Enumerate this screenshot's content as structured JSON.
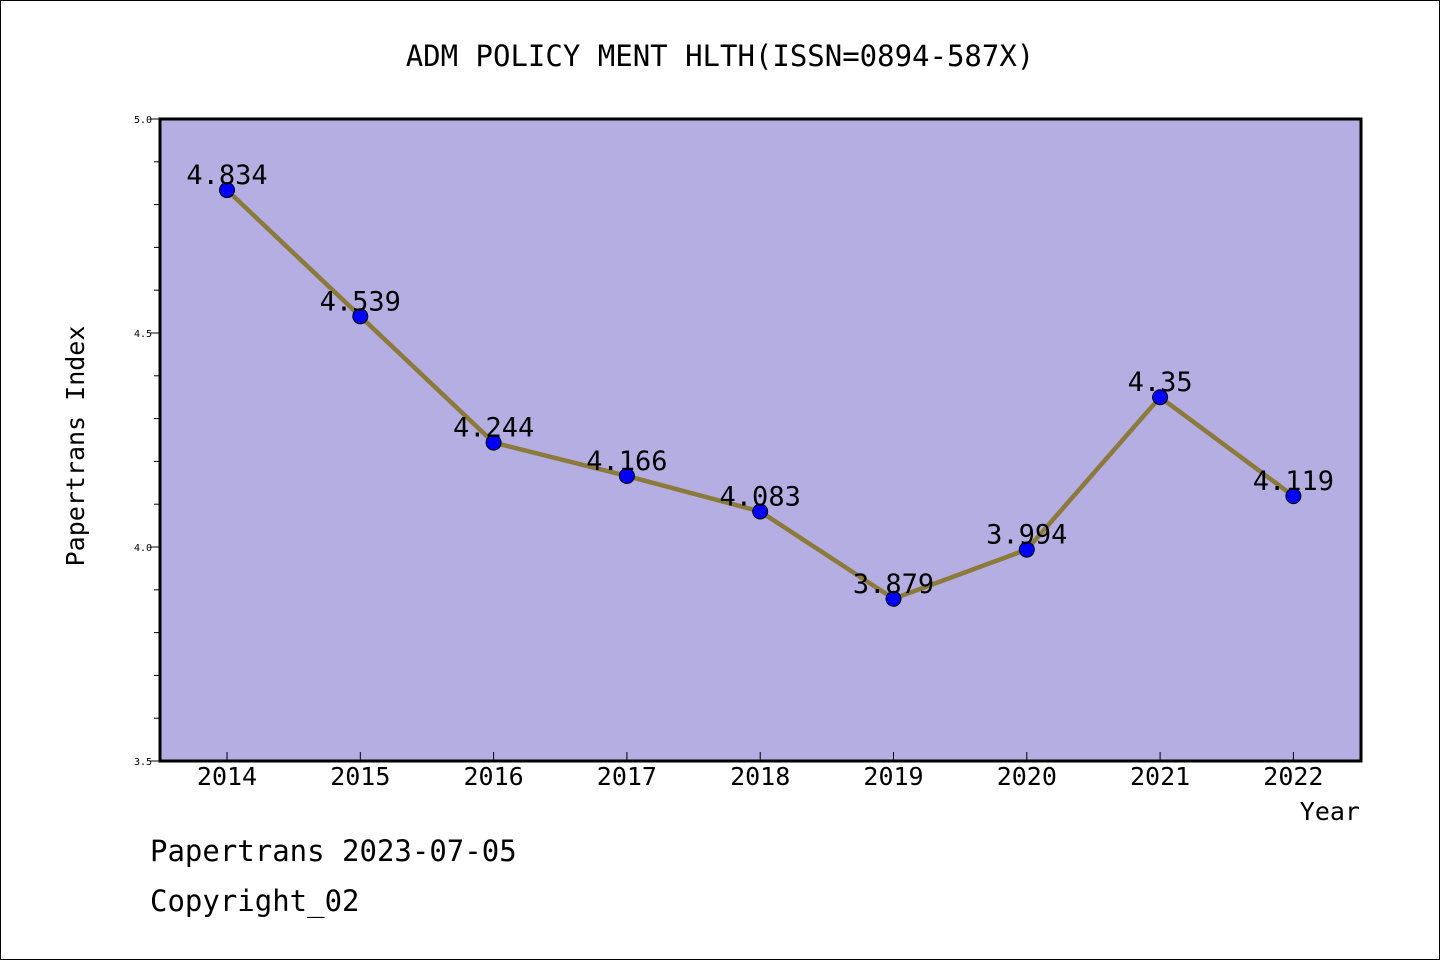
{
  "chart_data": {
    "type": "line",
    "title": "ADM POLICY MENT HLTH(ISSN=0894-587X)",
    "xlabel": "Year",
    "ylabel": "Papertrans Index",
    "categories": [
      "2014",
      "2015",
      "2016",
      "2017",
      "2018",
      "2019",
      "2020",
      "2021",
      "2022"
    ],
    "values": [
      4.834,
      4.539,
      4.244,
      4.166,
      4.083,
      3.879,
      3.994,
      4.35,
      4.119
    ],
    "data_labels": [
      "4.834",
      "4.539",
      "4.244",
      "4.166",
      "4.083",
      "3.879",
      "3.994",
      "4.35",
      "4.119"
    ],
    "ylim": [
      3.5,
      5.0
    ],
    "yticks": [
      "3.5",
      "4.0",
      "4.5",
      "5.0"
    ],
    "grid": false,
    "colors": {
      "plot_background": "#b5aee2",
      "line": "#8b7a3a",
      "marker": "#0000ff"
    }
  },
  "footer": {
    "date_text": "Papertrans 2023-07-05",
    "copyright": "Copyright_02"
  }
}
